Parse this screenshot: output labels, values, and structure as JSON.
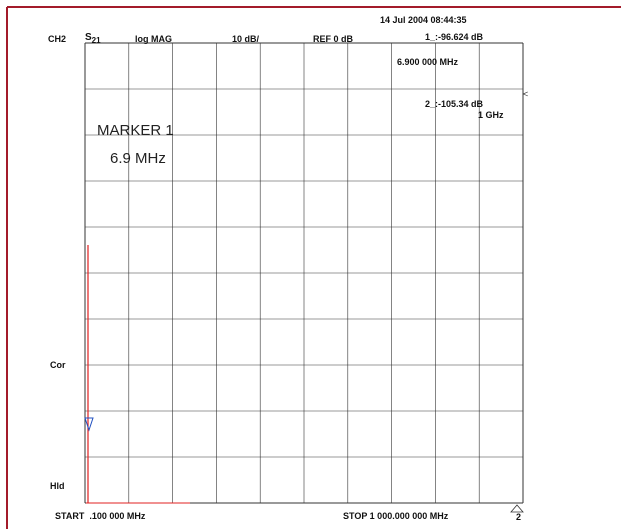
{
  "header": {
    "datetime": "14 Jul 2004 08:44:35",
    "channel": "CH2",
    "parameter": {
      "symbol": "S",
      "subscript": "21"
    },
    "format": "log MAG",
    "scale": "10 dB/",
    "reference": "REF 0 dB",
    "marker1_readout": "1_:-96.624 dB"
  },
  "markers": {
    "marker1_freq": "6.900 000 MHz",
    "marker2_readout": "2_:-105.34 dB",
    "marker2_freq": "1 GHz",
    "marker_title": "MARKER 1",
    "marker_value": "6.9 MHz"
  },
  "side": {
    "correction": "Cor",
    "hold": "Hld"
  },
  "footer": {
    "start": "START  .100 000 MHz",
    "stop": "STOP 1 000.000 000 MHz",
    "channel_index": "2"
  }
}
